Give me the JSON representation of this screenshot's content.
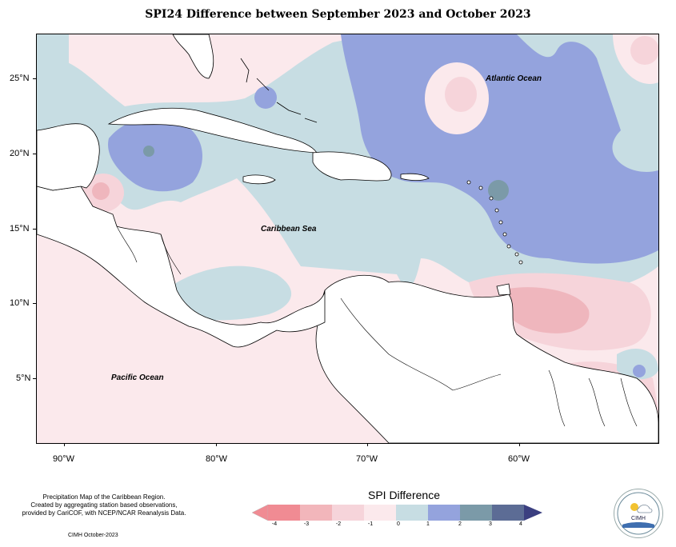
{
  "title": "SPI24 Difference between September 2023 and October 2023",
  "map": {
    "y_axis_labels": [
      "25°N",
      "20°N",
      "15°N",
      "10°N",
      "5°N"
    ],
    "x_axis_labels": [
      "90°W",
      "80°W",
      "70°W",
      "60°W"
    ],
    "place_labels": {
      "atlantic": "Atlantic Ocean",
      "caribbean": "Caribbean Sea",
      "pacific": "Pacific Ocean"
    },
    "colors": {
      "light_blue": "#c7dde3",
      "mid_blue": "#94a3dd",
      "teal": "#7b9aa8",
      "light_pink": "#fbe9ec",
      "pink": "#f6d4da",
      "mid_pink": "#efb6bd",
      "land": "#ffffff"
    }
  },
  "notes": {
    "line1": "Precipitation Map of the Caribbean Region.",
    "line2": "Created by aggregating station based observations,",
    "line3": "provided by CariCOF, with NCEP/NCAR Reanalysis Data.",
    "date": "CIMH October-2023"
  },
  "legend": {
    "title": "SPI Difference",
    "ticks": [
      "-4",
      "-3",
      "-2",
      "-1",
      "0",
      "1",
      "2",
      "3",
      "4"
    ],
    "colors": [
      "#f08b93",
      "#f2b6bb",
      "#f6d4da",
      "#fbe9ec",
      "#c7dde3",
      "#94a3dd",
      "#7b9aa8",
      "#5c6c95",
      "#3b3f80"
    ]
  },
  "logo": {
    "text": "CIMH"
  }
}
